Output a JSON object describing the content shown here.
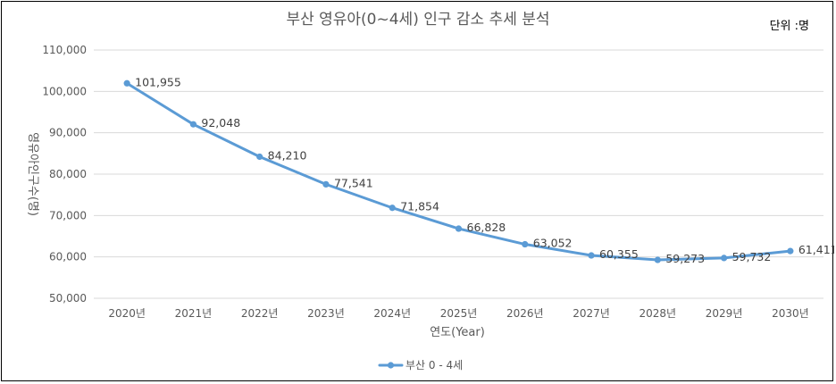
{
  "chart_data": {
    "type": "line",
    "title": "부산 영유아(0~4세) 인구 감소 추세 분석",
    "unit_label": "단위 :명",
    "xlabel": "연도(Year)",
    "ylabel": "영유아인구수(명)",
    "categories": [
      "2020년",
      "2021년",
      "2022년",
      "2023년",
      "2024년",
      "2025년",
      "2026년",
      "2027년",
      "2028년",
      "2029년",
      "2030년"
    ],
    "ylim": [
      50000,
      110000
    ],
    "yticks": [
      50000,
      60000,
      70000,
      80000,
      90000,
      100000,
      110000
    ],
    "ytick_labels": [
      "50,000",
      "60,000",
      "70,000",
      "80,000",
      "90,000",
      "100,000",
      "110,000"
    ],
    "grid": true,
    "legend_position": "bottom",
    "series": [
      {
        "name": "부산 0 - 4세",
        "color": "#5b9bd5",
        "values": [
          101955,
          92048,
          84210,
          77541,
          71854,
          66828,
          63052,
          60355,
          59273,
          59732,
          61411
        ],
        "labels": [
          "101,955",
          "92,048",
          "84,210",
          "77,541",
          "71,854",
          "66,828",
          "63,052",
          "60,355",
          "59,273",
          "59,732",
          "61,411"
        ]
      }
    ]
  }
}
